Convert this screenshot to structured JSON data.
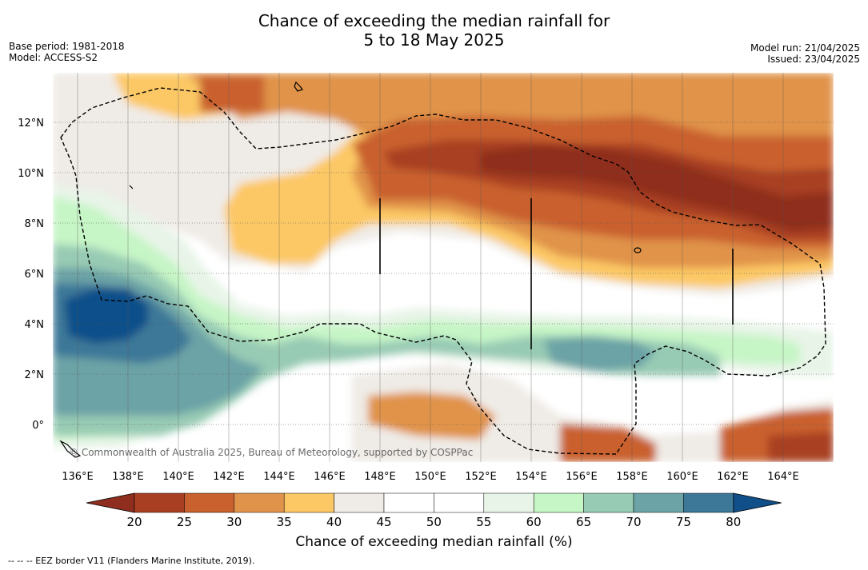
{
  "title_line1": "Chance of exceeding the median rainfall for",
  "title_line2": "5 to 18 May 2025",
  "base_period": "Base period: 1981-2018",
  "model": "Model: ACCESS-S2",
  "model_run": "Model run: 21/04/2025",
  "issued": "Issued: 23/04/2025",
  "copyright": "© Commonwealth of Australia 2025, Bureau of Meteorology, supported by COSPPac",
  "lat_labels": [
    "12°N",
    "10°N",
    "8°N",
    "6°N",
    "4°N",
    "2°N",
    "0°"
  ],
  "lat_values": [
    12,
    10,
    8,
    6,
    4,
    2,
    0
  ],
  "lon_labels": [
    "136°E",
    "138°E",
    "140°E",
    "142°E",
    "144°E",
    "146°E",
    "148°E",
    "150°E",
    "152°E",
    "154°E",
    "156°E",
    "158°E",
    "160°E",
    "162°E",
    "164°E"
  ],
  "lon_values": [
    136,
    138,
    140,
    142,
    144,
    146,
    148,
    150,
    152,
    154,
    156,
    158,
    160,
    162,
    164
  ],
  "colorbar": {
    "title": "Chance of exceeding median rainfall (%)",
    "ticks": [
      "20",
      "25",
      "30",
      "35",
      "40",
      "45",
      "50",
      "55",
      "60",
      "65",
      "70",
      "75",
      "80"
    ],
    "colors": [
      "#a93f22",
      "#c9612e",
      "#e0934a",
      "#fcc865",
      "#efebe6",
      "#ffffff",
      "#ffffff",
      "#e8f4e8",
      "#c6f5c6",
      "#98cbb4",
      "#6ca3a6",
      "#3d7898"
    ],
    "low_extend_color": "#8f2e1e",
    "high_extend_color": "#114f8a"
  },
  "footnote": "--  --  -- EEZ border V11 (Flanders Marine Institute, 2019)."
}
